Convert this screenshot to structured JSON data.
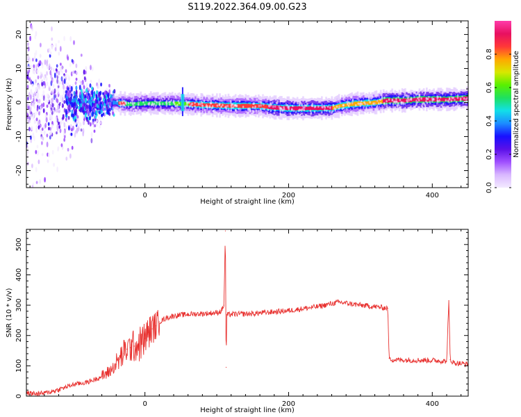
{
  "title": "S119.2022.364.09.00.G23",
  "colors": {
    "snr_line": "#e8312f",
    "colormap": [
      "#f3eaff",
      "#d9b8ff",
      "#a050ff",
      "#5a10e8",
      "#1810ff",
      "#1c8cff",
      "#12e0e8",
      "#1ee060",
      "#58f000",
      "#d8e800",
      "#ffa800",
      "#ff3838",
      "#e81060",
      "#ff3caa"
    ]
  },
  "chart_data": [
    {
      "type": "heatmap",
      "title": "",
      "xlabel": "Height of straight line (km)",
      "ylabel": "Frequency (Hz)",
      "xlim": [
        -165,
        450
      ],
      "ylim": [
        -25,
        24
      ],
      "xticks": [
        0,
        200,
        400
      ],
      "yticks": [
        -20,
        -10,
        0,
        10,
        20
      ],
      "colorbar": {
        "label": "Normalized spectral amplitude",
        "range": [
          0,
          1
        ],
        "ticks": [
          "0.0",
          "0.2",
          "0.4",
          "0.6",
          "0.8"
        ]
      },
      "ridge": {
        "x": [
          -45,
          -30,
          -20,
          0,
          40,
          55,
          80,
          120,
          160,
          175,
          200,
          230,
          260,
          270,
          290,
          320,
          335,
          360,
          380,
          420,
          450
        ],
        "y": [
          0.0,
          -0.3,
          -0.5,
          -0.2,
          -0.3,
          -0.4,
          -0.7,
          -1.0,
          -1.0,
          -1.4,
          -1.7,
          -1.7,
          -1.6,
          -1.0,
          -0.4,
          0.0,
          0.6,
          0.6,
          0.9,
          0.9,
          1.2
        ]
      }
    },
    {
      "type": "line",
      "title": "",
      "xlabel": "Height of straight line (km)",
      "ylabel": "SNR (10 * v/v)",
      "xlim": [
        -165,
        450
      ],
      "ylim": [
        0,
        550
      ],
      "xticks": [
        0,
        200,
        400
      ],
      "yticks": [
        0,
        100,
        200,
        300,
        400,
        500
      ],
      "series": [
        {
          "x": [
            -165,
            -150,
            -140,
            -130,
            -120,
            -110,
            -100,
            -90,
            -80,
            -70,
            -60,
            -50,
            -45,
            -40,
            -35,
            -30,
            -25,
            -20,
            -15,
            -10,
            -5,
            0,
            5,
            10,
            15,
            20,
            30,
            40,
            60,
            80,
            100,
            106,
            110,
            112,
            113,
            114,
            116,
            120,
            150,
            200,
            240,
            270,
            300,
            320,
            338,
            340,
            345,
            400,
            420,
            423,
            425,
            430,
            450
          ],
          "y": [
            10,
            8,
            10,
            15,
            22,
            30,
            38,
            42,
            46,
            55,
            65,
            80,
            92,
            105,
            122,
            140,
            155,
            160,
            165,
            168,
            175,
            190,
            210,
            222,
            232,
            245,
            258,
            265,
            270,
            272,
            275,
            280,
            300,
            545,
            95,
            270,
            268,
            270,
            272,
            282,
            295,
            310,
            300,
            295,
            290,
            125,
            120,
            118,
            115,
            315,
            120,
            110,
            105
          ]
        }
      ]
    }
  ]
}
